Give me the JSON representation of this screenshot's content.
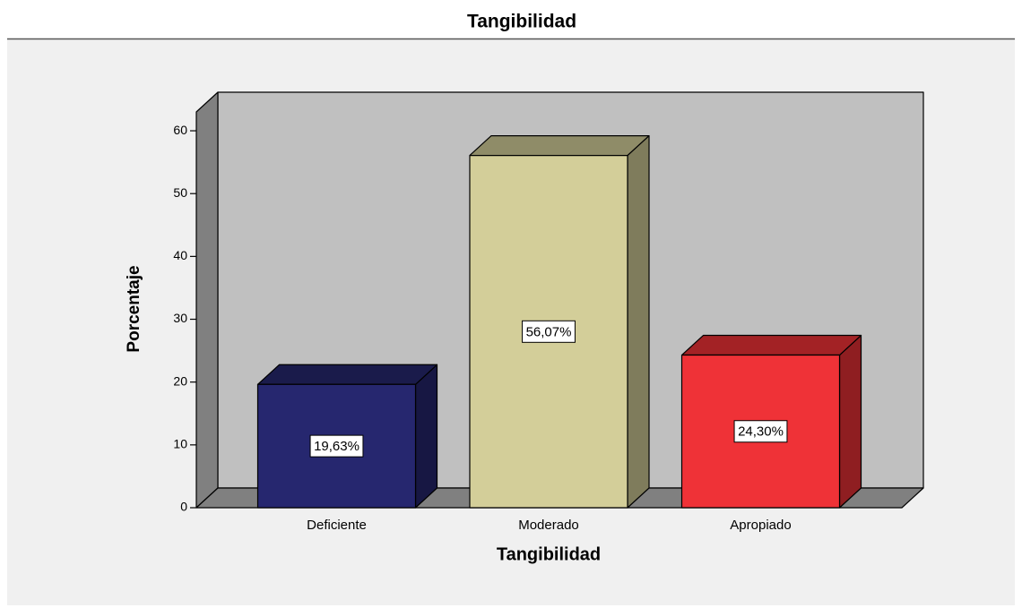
{
  "chart_data": {
    "type": "bar3d",
    "title": "Tangibilidad",
    "x_label": "Tangibilidad",
    "y_label": "Porcentaje",
    "categories": [
      "Deficiente",
      "Moderado",
      "Apropiado"
    ],
    "values": [
      19.63,
      56.07,
      24.3
    ],
    "value_labels": [
      "19,63%",
      "56,07%",
      "24,30%"
    ],
    "colors": [
      "#26276f",
      "#d3ce99",
      "#ef3237"
    ],
    "ylim": [
      0,
      63
    ],
    "yticks": [
      0,
      10,
      20,
      30,
      40,
      50,
      60
    ]
  }
}
